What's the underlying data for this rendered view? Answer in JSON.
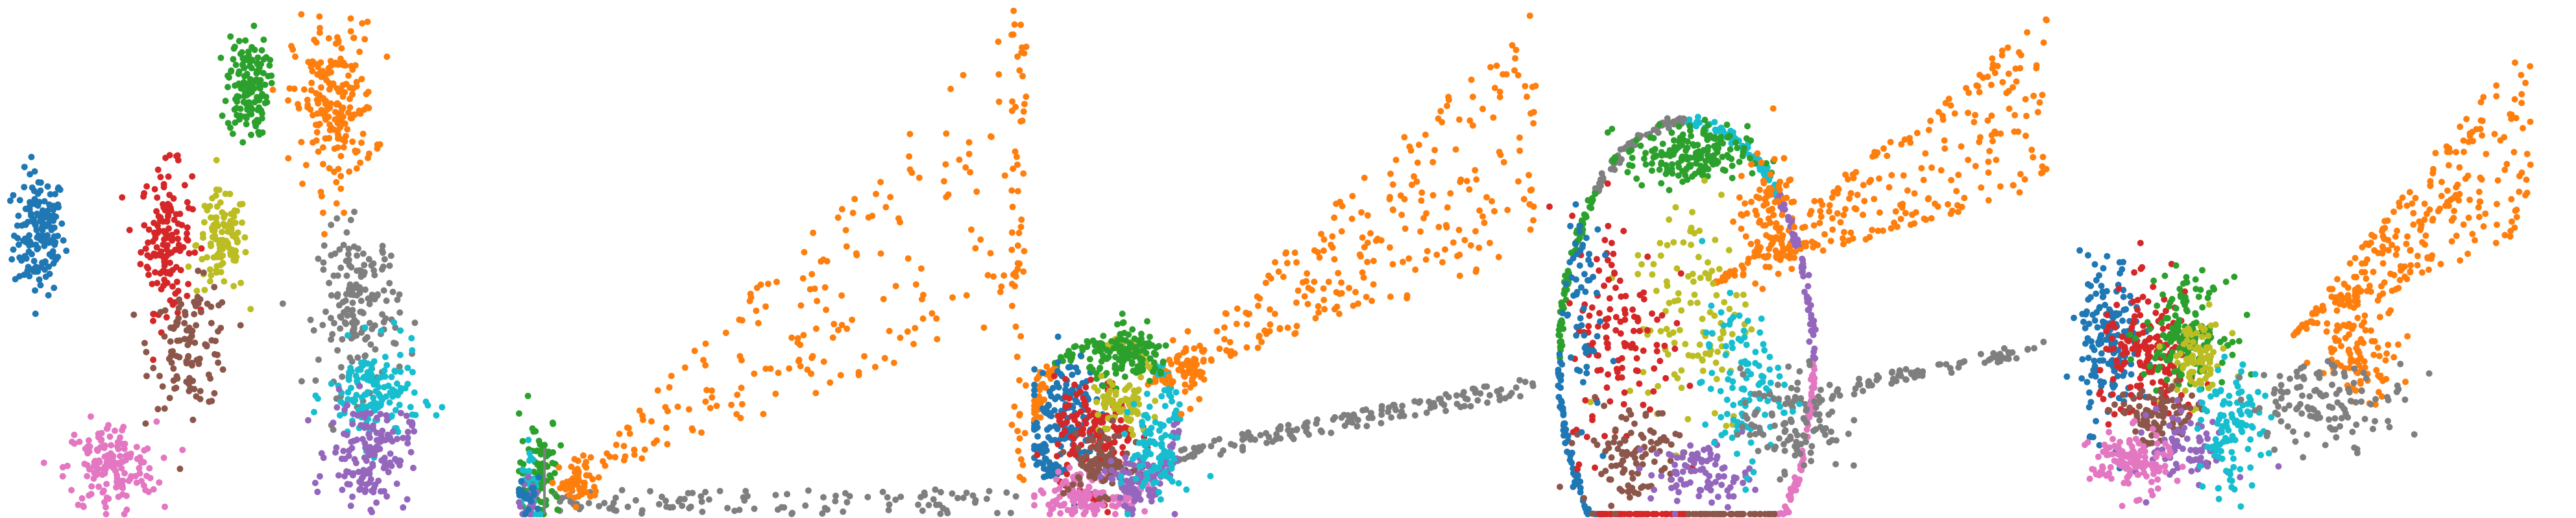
{
  "figure": {
    "panel_count": 5,
    "background": "#ffffff"
  },
  "palette": {
    "blue": "#1f77b4",
    "orange": "#ff7f0e",
    "green": "#2ca02c",
    "red": "#d62728",
    "purple": "#9467bd",
    "brown": "#8c564b",
    "pink": "#e377c2",
    "gray": "#7f7f7f",
    "olive": "#bcbd22",
    "cyan": "#17becf"
  },
  "chart_data": [
    {
      "type": "scatter",
      "title": "",
      "xlabel": "",
      "ylabel": "",
      "axes_visible": false,
      "grid": false,
      "legend": "none",
      "xlim": [
        0,
        1
      ],
      "ylim": [
        0,
        1
      ],
      "clusters": [
        {
          "color": "blue",
          "x": 0.07,
          "y": 0.55,
          "sx": 0.025,
          "sy": 0.06,
          "count": 160
        },
        {
          "color": "red",
          "x": 0.32,
          "y": 0.54,
          "sx": 0.025,
          "sy": 0.07,
          "count": 150
        },
        {
          "color": "olive",
          "x": 0.43,
          "y": 0.53,
          "sx": 0.025,
          "sy": 0.05,
          "count": 110
        },
        {
          "color": "brown",
          "x": 0.37,
          "y": 0.33,
          "sx": 0.04,
          "sy": 0.06,
          "count": 110
        },
        {
          "color": "pink",
          "x": 0.21,
          "y": 0.09,
          "sx": 0.045,
          "sy": 0.045,
          "count": 160
        },
        {
          "color": "green",
          "x": 0.48,
          "y": 0.84,
          "sx": 0.02,
          "sy": 0.05,
          "count": 140
        },
        {
          "color": "orange",
          "x": 0.65,
          "y": 0.8,
          "sx": 0.04,
          "sy": 0.08,
          "count": 200
        },
        {
          "color": "gray",
          "x": 0.7,
          "y": 0.4,
          "sx": 0.04,
          "sy": 0.08,
          "count": 170
        },
        {
          "color": "cyan",
          "x": 0.73,
          "y": 0.23,
          "sx": 0.045,
          "sy": 0.05,
          "count": 150
        },
        {
          "color": "purple",
          "x": 0.72,
          "y": 0.12,
          "sx": 0.04,
          "sy": 0.05,
          "count": 150
        }
      ]
    },
    {
      "type": "scatter",
      "title": "",
      "xlabel": "",
      "ylabel": "",
      "axes_visible": false,
      "grid": false,
      "legend": "none",
      "xlim": [
        0,
        1
      ],
      "ylim": [
        0,
        1
      ],
      "base_point": [
        0.05,
        0.03
      ],
      "clusters": [
        {
          "color": "green",
          "x": 0.04,
          "y": 0.09,
          "sx": 0.02,
          "sy": 0.05,
          "count": 90
        },
        {
          "color": "orange",
          "x": 0.12,
          "y": 0.06,
          "sx": 0.02,
          "sy": 0.02,
          "count": 50
        },
        {
          "color": "cyan",
          "x": 0.02,
          "y": 0.04,
          "sx": 0.01,
          "sy": 0.05,
          "count": 40
        },
        {
          "color": "purple",
          "x": 0.02,
          "y": 0.02,
          "sx": 0.01,
          "sy": 0.02,
          "count": 25
        },
        {
          "color": "blue",
          "x": 0.02,
          "y": 0.03,
          "sx": 0.01,
          "sy": 0.02,
          "count": 20
        }
      ],
      "sprays": [
        {
          "color": "orange",
          "count": 200,
          "x": [
            0.08,
            0.98
          ],
          "y": [
            0.05,
            0.97
          ],
          "mode": "wedge"
        },
        {
          "color": "gray",
          "count": 110,
          "x": [
            0.05,
            0.99
          ],
          "y": [
            0.0,
            0.05
          ],
          "mode": "floor"
        },
        {
          "color": "orange",
          "count": 60,
          "x": [
            0.97,
            1.0
          ],
          "y": [
            0.05,
            1.0
          ],
          "mode": "edge"
        }
      ]
    },
    {
      "type": "scatter",
      "title": "",
      "xlabel": "",
      "ylabel": "",
      "axes_visible": false,
      "grid": false,
      "legend": "none",
      "xlim": [
        0,
        1
      ],
      "ylim": [
        0,
        1
      ],
      "blob": {
        "cx": 0.14,
        "cy": 0.18,
        "r": 0.14
      },
      "clusters": [
        {
          "color": "blue",
          "x": 0.06,
          "y": 0.2,
          "sx": 0.03,
          "sy": 0.06,
          "count": 140
        },
        {
          "color": "red",
          "x": 0.12,
          "y": 0.16,
          "sx": 0.04,
          "sy": 0.05,
          "count": 130
        },
        {
          "color": "green",
          "x": 0.19,
          "y": 0.31,
          "sx": 0.04,
          "sy": 0.025,
          "count": 130
        },
        {
          "color": "olive",
          "x": 0.17,
          "y": 0.21,
          "sx": 0.03,
          "sy": 0.03,
          "count": 70
        },
        {
          "color": "pink",
          "x": 0.09,
          "y": 0.04,
          "sx": 0.04,
          "sy": 0.02,
          "count": 120
        },
        {
          "color": "brown",
          "x": 0.13,
          "y": 0.1,
          "sx": 0.03,
          "sy": 0.03,
          "count": 90
        },
        {
          "color": "purple",
          "x": 0.2,
          "y": 0.06,
          "sx": 0.03,
          "sy": 0.03,
          "count": 90
        },
        {
          "color": "cyan",
          "x": 0.24,
          "y": 0.12,
          "sx": 0.025,
          "sy": 0.05,
          "count": 90
        },
        {
          "color": "orange",
          "x": 0.3,
          "y": 0.28,
          "sx": 0.025,
          "sy": 0.03,
          "count": 60
        }
      ],
      "sprays": [
        {
          "color": "orange",
          "count": 260,
          "x": [
            0.22,
            0.99
          ],
          "y": [
            0.25,
            0.99
          ],
          "mode": "wedge"
        },
        {
          "color": "gray",
          "count": 150,
          "x": [
            0.28,
            0.99
          ],
          "y": [
            0.1,
            0.27
          ],
          "mode": "band"
        }
      ]
    },
    {
      "type": "scatter",
      "title": "",
      "xlabel": "",
      "ylabel": "",
      "axes_visible": false,
      "grid": false,
      "legend": "none",
      "xlim": [
        0,
        1
      ],
      "ylim": [
        0,
        1
      ],
      "ring": {
        "cx": 0.27,
        "cy": 0.3,
        "rx": 0.25,
        "ry": 0.47
      },
      "clusters": [
        {
          "color": "green",
          "x": 0.27,
          "y": 0.7,
          "sx": 0.06,
          "sy": 0.03,
          "count": 180
        },
        {
          "color": "olive",
          "x": 0.28,
          "y": 0.4,
          "sx": 0.06,
          "sy": 0.12,
          "count": 120
        },
        {
          "color": "red",
          "x": 0.14,
          "y": 0.35,
          "sx": 0.05,
          "sy": 0.12,
          "count": 130
        },
        {
          "color": "brown",
          "x": 0.16,
          "y": 0.12,
          "sx": 0.05,
          "sy": 0.05,
          "count": 100
        },
        {
          "color": "purple",
          "x": 0.3,
          "y": 0.08,
          "sx": 0.05,
          "sy": 0.03,
          "count": 90
        },
        {
          "color": "cyan",
          "x": 0.38,
          "y": 0.25,
          "sx": 0.04,
          "sy": 0.08,
          "count": 110
        },
        {
          "color": "blue",
          "x": 0.06,
          "y": 0.42,
          "sx": 0.02,
          "sy": 0.12,
          "count": 60
        },
        {
          "color": "orange",
          "x": 0.43,
          "y": 0.58,
          "sx": 0.03,
          "sy": 0.06,
          "count": 90
        },
        {
          "color": "gray",
          "x": 0.48,
          "y": 0.18,
          "sx": 0.05,
          "sy": 0.05,
          "count": 100
        }
      ],
      "sprays": [
        {
          "color": "orange",
          "count": 260,
          "x": [
            0.32,
            0.98
          ],
          "y": [
            0.45,
            0.99
          ],
          "mode": "wedge"
        },
        {
          "color": "gray",
          "count": 90,
          "x": [
            0.45,
            0.99
          ],
          "y": [
            0.2,
            0.35
          ],
          "mode": "band"
        }
      ]
    },
    {
      "type": "scatter",
      "title": "",
      "xlabel": "",
      "ylabel": "",
      "axes_visible": false,
      "grid": false,
      "legend": "none",
      "xlim": [
        0,
        1
      ],
      "ylim": [
        0,
        1
      ],
      "clusters": [
        {
          "color": "blue",
          "x": 0.09,
          "y": 0.34,
          "sx": 0.03,
          "sy": 0.08,
          "count": 170
        },
        {
          "color": "red",
          "x": 0.17,
          "y": 0.3,
          "sx": 0.05,
          "sy": 0.07,
          "count": 170
        },
        {
          "color": "green",
          "x": 0.24,
          "y": 0.36,
          "sx": 0.04,
          "sy": 0.05,
          "count": 150
        },
        {
          "color": "olive",
          "x": 0.26,
          "y": 0.3,
          "sx": 0.03,
          "sy": 0.04,
          "count": 80
        },
        {
          "color": "brown",
          "x": 0.18,
          "y": 0.19,
          "sx": 0.04,
          "sy": 0.03,
          "count": 90
        },
        {
          "color": "purple",
          "x": 0.25,
          "y": 0.13,
          "sx": 0.04,
          "sy": 0.04,
          "count": 80
        },
        {
          "color": "pink",
          "x": 0.13,
          "y": 0.1,
          "sx": 0.04,
          "sy": 0.03,
          "count": 130
        },
        {
          "color": "cyan",
          "x": 0.33,
          "y": 0.16,
          "sx": 0.03,
          "sy": 0.06,
          "count": 110
        },
        {
          "color": "orange",
          "x": 0.58,
          "y": 0.33,
          "sx": 0.04,
          "sy": 0.05,
          "count": 100
        },
        {
          "color": "gray",
          "x": 0.52,
          "y": 0.22,
          "sx": 0.08,
          "sy": 0.04,
          "count": 120
        }
      ],
      "sprays": [
        {
          "color": "orange",
          "count": 260,
          "x": [
            0.45,
            0.92
          ],
          "y": [
            0.35,
            0.95
          ],
          "mode": "wedge"
        }
      ]
    }
  ]
}
